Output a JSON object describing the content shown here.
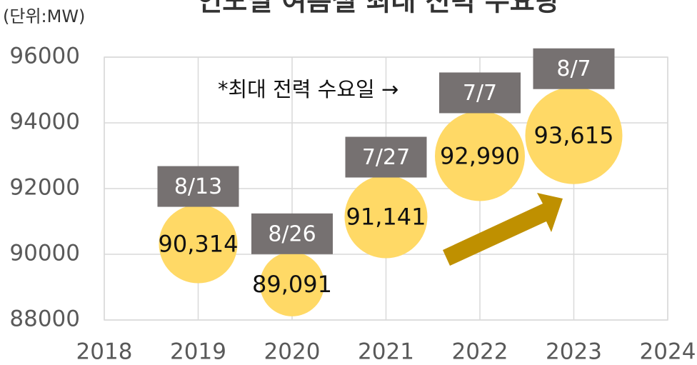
{
  "chart_data": {
    "type": "bubble",
    "title": "연도별 여름철 최대 전력 수요량",
    "unit": "(단위:MW)",
    "annotation": "*최대 전력 수요일 →",
    "x": [
      2019,
      2020,
      2021,
      2022,
      2023
    ],
    "values": [
      90314,
      89091,
      91141,
      92990,
      93615
    ],
    "value_labels": [
      "90,314",
      "89,091",
      "91,141",
      "92,990",
      "93,615"
    ],
    "sizes": [
      55,
      45,
      58,
      63,
      68
    ],
    "dates": [
      "8/13",
      "8/26",
      "7/27",
      "7/7",
      "8/7"
    ],
    "color": "#ffd966",
    "date_box_color": "#767171",
    "xlim": [
      2018,
      2024
    ],
    "xticks": [
      2018,
      2019,
      2020,
      2021,
      2022,
      2023,
      2024
    ],
    "ylim": [
      88000,
      96000
    ],
    "yticks": [
      88000,
      90000,
      92000,
      94000,
      96000
    ],
    "grid": true
  }
}
